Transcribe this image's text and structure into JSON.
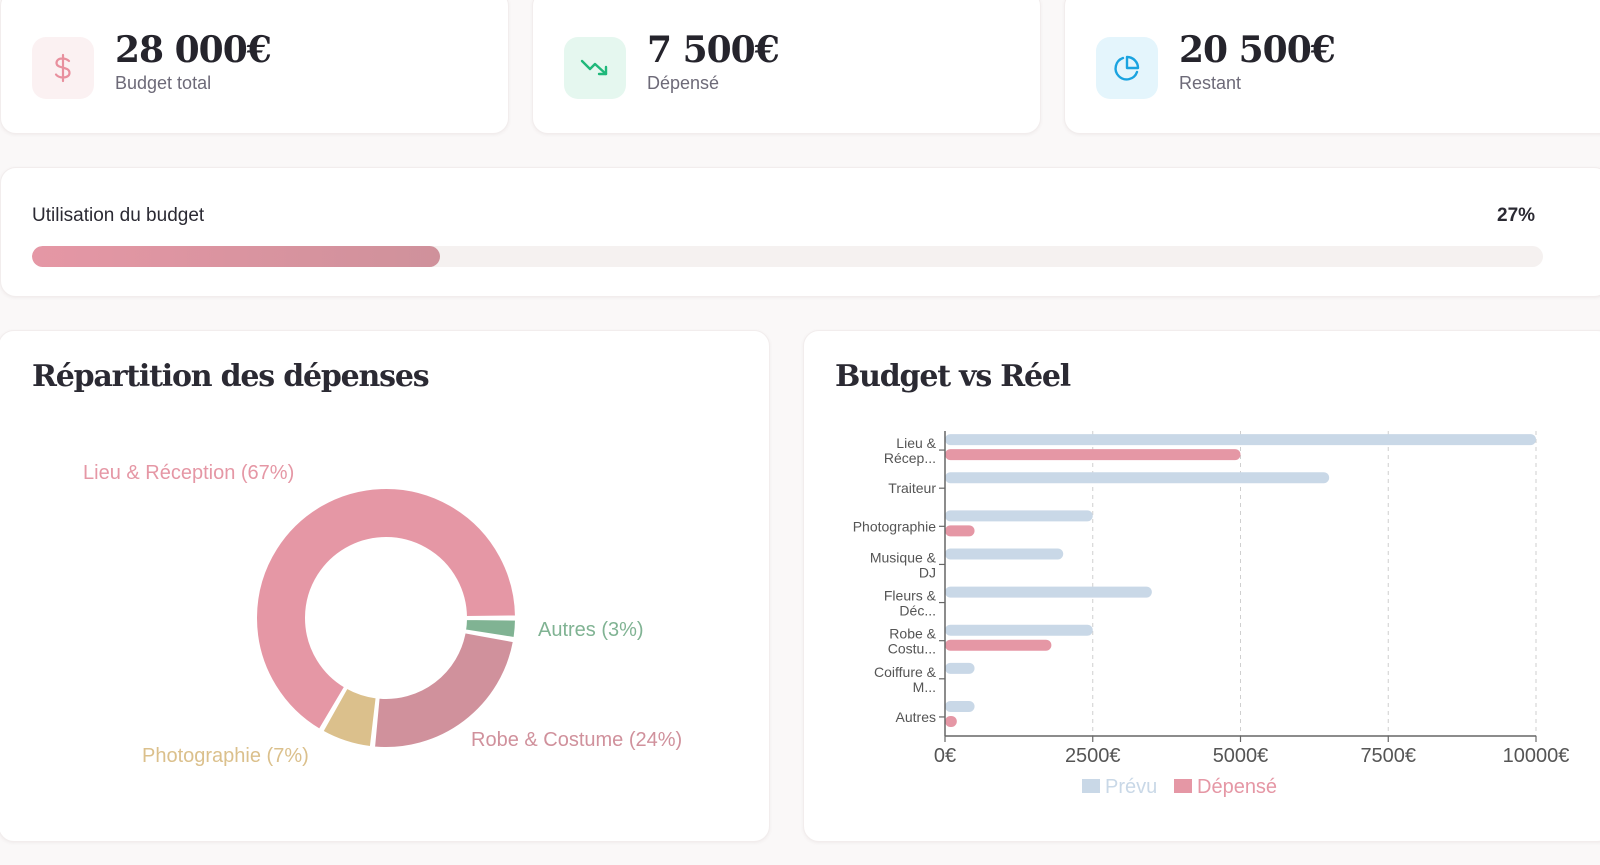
{
  "stats": [
    {
      "value": "28 000€",
      "label": "Budget total",
      "icon": "dollar-icon",
      "icon_color": "#e8909e",
      "icon_bg": "#fbf1f2"
    },
    {
      "value": "7 500€",
      "label": "Dépensé",
      "icon": "trending-down-icon",
      "icon_color": "#1fb87a",
      "icon_bg": "#e5f7ef"
    },
    {
      "value": "20 500€",
      "label": "Restant",
      "icon": "pie-chart-icon",
      "icon_color": "#1aa3e0",
      "icon_bg": "#e4f5fc"
    }
  ],
  "budget_usage": {
    "title": "Utilisation du budget",
    "percent_label": "27%",
    "percent": 27
  },
  "panels": {
    "distribution_title": "Répartition des dépenses",
    "comparison_title": "Budget vs Réel"
  },
  "chart_data": [
    {
      "type": "pie",
      "title": "Répartition des dépenses",
      "donut": true,
      "categories": [
        "Lieu & Réception",
        "Robe & Costume",
        "Photographie",
        "Autres"
      ],
      "values": [
        5000,
        1800,
        500,
        200
      ],
      "percent_labels": [
        "Lieu & Réception (67%)",
        "Robe & Costume (24%)",
        "Photographie (7%)",
        "Autres (3%)"
      ],
      "colors": [
        "#e597a5",
        "#d0919c",
        "#dbc08c",
        "#80b393"
      ]
    },
    {
      "type": "bar",
      "orientation": "horizontal",
      "title": "Budget vs Réel",
      "categories": [
        "Lieu & Récep...",
        "Traiteur",
        "Photographie",
        "Musique & DJ",
        "Fleurs & Déc...",
        "Robe & Costu...",
        "Coiffure & M...",
        "Autres"
      ],
      "category_label_lines": [
        [
          "Lieu &",
          "Récep..."
        ],
        [
          "Traiteur"
        ],
        [
          "Photographie"
        ],
        [
          "Musique &",
          "DJ"
        ],
        [
          "Fleurs &",
          "Déc..."
        ],
        [
          "Robe &",
          "Costu..."
        ],
        [
          "Coiffure &",
          "M..."
        ],
        [
          "Autres"
        ]
      ],
      "series": [
        {
          "name": "Prévu",
          "color": "#c9d8e7",
          "values": [
            10000,
            6500,
            2500,
            2000,
            3500,
            2500,
            500,
            500
          ]
        },
        {
          "name": "Dépensé",
          "color": "#e597a5",
          "values": [
            5000,
            0,
            500,
            0,
            0,
            1800,
            0,
            200
          ]
        }
      ],
      "xlim": [
        0,
        10000
      ],
      "xticks": [
        0,
        2500,
        5000,
        7500,
        10000
      ],
      "xtick_labels": [
        "0€",
        "2500€",
        "5000€",
        "7500€",
        "10000€"
      ],
      "grid": "vertical-dashed",
      "legend": "bottom-center",
      "legend_labels": [
        "Prévu",
        "Dépensé"
      ]
    }
  ]
}
